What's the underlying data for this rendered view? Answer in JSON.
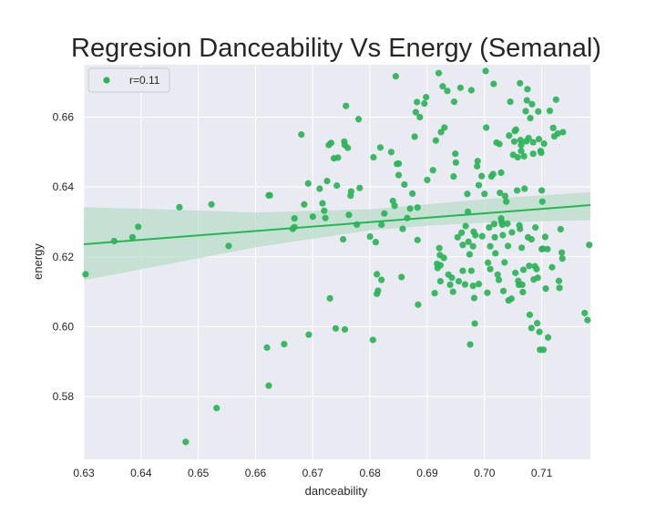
{
  "chart_data": {
    "type": "scatter",
    "title": "Regresion Danceability Vs Energy (Semanal)",
    "xlabel": "danceability",
    "ylabel": "energy",
    "xlim": [
      0.63,
      0.7185
    ],
    "ylim": [
      0.562,
      0.675
    ],
    "xticks": [
      0.63,
      0.64,
      0.65,
      0.66,
      0.67,
      0.68,
      0.69,
      0.7,
      0.71
    ],
    "xtick_labels": [
      "0.63",
      "0.64",
      "0.65",
      "0.66",
      "0.67",
      "0.68",
      "0.69",
      "0.70",
      "0.71"
    ],
    "yticks": [
      0.58,
      0.6,
      0.62,
      0.64,
      0.66
    ],
    "ytick_labels": [
      "0.58",
      "0.60",
      "0.62",
      "0.64",
      "0.66"
    ],
    "grid": true,
    "legend": {
      "position": "upper-left",
      "entries": [
        {
          "label": "r=0.11"
        }
      ]
    },
    "colors": {
      "points": "#2bb358",
      "line": "#21b852",
      "band": "#b9dcc8",
      "background": "#eaeaf2",
      "grid": "#ffffff"
    },
    "regression": {
      "x0": 0.63,
      "y0": 0.6236,
      "x1": 0.7185,
      "y1": 0.6348
    },
    "confidence_band": {
      "x": [
        0.63,
        0.64,
        0.66,
        0.68,
        0.69,
        0.7,
        0.7185
      ],
      "lower": [
        0.6133,
        0.6164,
        0.6227,
        0.6276,
        0.6289,
        0.6298,
        0.6305
      ],
      "upper": [
        0.6342,
        0.6338,
        0.6327,
        0.6336,
        0.635,
        0.6365,
        0.6385
      ]
    },
    "points": [
      [
        0.6303,
        0.615
      ],
      [
        0.6353,
        0.6245
      ],
      [
        0.6385,
        0.6256
      ],
      [
        0.6395,
        0.6286
      ],
      [
        0.6467,
        0.6342
      ],
      [
        0.6478,
        0.567
      ],
      [
        0.6523,
        0.635
      ],
      [
        0.6532,
        0.5767
      ],
      [
        0.6553,
        0.6231
      ],
      [
        0.662,
        0.594
      ],
      [
        0.6623,
        0.6376
      ],
      [
        0.6625,
        0.6376
      ],
      [
        0.6623,
        0.5831
      ],
      [
        0.665,
        0.595
      ],
      [
        0.6665,
        0.628
      ],
      [
        0.6668,
        0.6285
      ],
      [
        0.6668,
        0.631
      ],
      [
        0.668,
        0.655
      ],
      [
        0.6685,
        0.635
      ],
      [
        0.6692,
        0.641
      ],
      [
        0.6693,
        0.5977
      ],
      [
        0.67,
        0.6315
      ],
      [
        0.6712,
        0.6395
      ],
      [
        0.6717,
        0.6353
      ],
      [
        0.672,
        0.6332
      ],
      [
        0.6722,
        0.6311
      ],
      [
        0.6725,
        0.6417
      ],
      [
        0.6728,
        0.652
      ],
      [
        0.673,
        0.6081
      ],
      [
        0.6732,
        0.6526
      ],
      [
        0.6737,
        0.6482
      ],
      [
        0.674,
        0.5995
      ],
      [
        0.6742,
        0.6404
      ],
      [
        0.6744,
        0.6484
      ],
      [
        0.6753,
        0.625
      ],
      [
        0.6755,
        0.653
      ],
      [
        0.6756,
        0.652
      ],
      [
        0.6756,
        0.5992
      ],
      [
        0.6758,
        0.6632
      ],
      [
        0.6761,
        0.6512
      ],
      [
        0.6763,
        0.632
      ],
      [
        0.6766,
        0.6375
      ],
      [
        0.6767,
        0.6387
      ],
      [
        0.6777,
        0.6292
      ],
      [
        0.678,
        0.6594
      ],
      [
        0.6782,
        0.6397
      ],
      [
        0.68,
        0.6258
      ],
      [
        0.6805,
        0.5962
      ],
      [
        0.6806,
        0.6485
      ],
      [
        0.681,
        0.6242
      ],
      [
        0.6812,
        0.615
      ],
      [
        0.6812,
        0.6094
      ],
      [
        0.6814,
        0.6103
      ],
      [
        0.6818,
        0.6513
      ],
      [
        0.682,
        0.6292
      ],
      [
        0.682,
        0.6134
      ],
      [
        0.6825,
        0.6324
      ],
      [
        0.6837,
        0.65
      ],
      [
        0.684,
        0.636
      ],
      [
        0.6843,
        0.6346
      ],
      [
        0.6845,
        0.6717
      ],
      [
        0.6847,
        0.6466
      ],
      [
        0.685,
        0.6467
      ],
      [
        0.685,
        0.6434
      ],
      [
        0.6855,
        0.6142
      ],
      [
        0.6857,
        0.628
      ],
      [
        0.686,
        0.6407
      ],
      [
        0.6865,
        0.6311
      ],
      [
        0.687,
        0.6338
      ],
      [
        0.6874,
        0.6381
      ],
      [
        0.6878,
        0.6544
      ],
      [
        0.688,
        0.6614
      ],
      [
        0.6882,
        0.6643
      ],
      [
        0.6883,
        0.6341
      ],
      [
        0.6883,
        0.6248
      ],
      [
        0.6884,
        0.6063
      ],
      [
        0.6887,
        0.66
      ],
      [
        0.6895,
        0.6639
      ],
      [
        0.6898,
        0.6657
      ],
      [
        0.69,
        0.642
      ],
      [
        0.691,
        0.6448
      ],
      [
        0.6913,
        0.6096
      ],
      [
        0.6915,
        0.6533
      ],
      [
        0.6917,
        0.618
      ],
      [
        0.6918,
        0.6168
      ],
      [
        0.692,
        0.6726
      ],
      [
        0.6921,
        0.6225
      ],
      [
        0.6922,
        0.6205
      ],
      [
        0.6923,
        0.6176
      ],
      [
        0.6923,
        0.613
      ],
      [
        0.6924,
        0.6557
      ],
      [
        0.6927,
        0.6688
      ],
      [
        0.6929,
        0.6197
      ],
      [
        0.693,
        0.657
      ],
      [
        0.6935,
        0.6675
      ],
      [
        0.6937,
        0.6149
      ],
      [
        0.694,
        0.612
      ],
      [
        0.6943,
        0.614
      ],
      [
        0.6945,
        0.61
      ],
      [
        0.6946,
        0.643
      ],
      [
        0.6947,
        0.6644
      ],
      [
        0.6949,
        0.6495
      ],
      [
        0.695,
        0.647
      ],
      [
        0.6953,
        0.6256
      ],
      [
        0.6955,
        0.613
      ],
      [
        0.6958,
        0.6684
      ],
      [
        0.696,
        0.6269
      ],
      [
        0.6962,
        0.6234
      ],
      [
        0.6962,
        0.616
      ],
      [
        0.6966,
        0.6121
      ],
      [
        0.6967,
        0.6288
      ],
      [
        0.697,
        0.638
      ],
      [
        0.6971,
        0.6329
      ],
      [
        0.6972,
        0.6243
      ],
      [
        0.6974,
        0.6207
      ],
      [
        0.6975,
        0.5949
      ],
      [
        0.6977,
        0.6677
      ],
      [
        0.6977,
        0.616
      ],
      [
        0.698,
        0.623
      ],
      [
        0.698,
        0.6117
      ],
      [
        0.6981,
        0.6272
      ],
      [
        0.6982,
        0.6082
      ],
      [
        0.6983,
        0.6009
      ],
      [
        0.6984,
        0.6262
      ],
      [
        0.6987,
        0.6459
      ],
      [
        0.6988,
        0.6474
      ],
      [
        0.699,
        0.6122
      ],
      [
        0.699,
        0.6405
      ],
      [
        0.6995,
        0.6431
      ],
      [
        0.6996,
        0.6259
      ],
      [
        0.7,
        0.638
      ],
      [
        0.7002,
        0.6732
      ],
      [
        0.7003,
        0.657
      ],
      [
        0.7005,
        0.6097
      ],
      [
        0.7006,
        0.6183
      ],
      [
        0.7008,
        0.6284
      ],
      [
        0.701,
        0.623
      ],
      [
        0.701,
        0.6165
      ],
      [
        0.7012,
        0.643
      ],
      [
        0.7015,
        0.6437
      ],
      [
        0.7016,
        0.6695
      ],
      [
        0.7017,
        0.6294
      ],
      [
        0.7018,
        0.6256
      ],
      [
        0.7019,
        0.621
      ],
      [
        0.7021,
        0.6527
      ],
      [
        0.7023,
        0.6149
      ],
      [
        0.7025,
        0.6134
      ],
      [
        0.7026,
        0.6523
      ],
      [
        0.7027,
        0.6383
      ],
      [
        0.7029,
        0.6441
      ],
      [
        0.7029,
        0.631
      ],
      [
        0.703,
        0.63
      ],
      [
        0.7031,
        0.6292
      ],
      [
        0.7032,
        0.6262
      ],
      [
        0.7033,
        0.6102
      ],
      [
        0.7035,
        0.6184
      ],
      [
        0.7036,
        0.6374
      ],
      [
        0.7038,
        0.6358
      ],
      [
        0.704,
        0.6295
      ],
      [
        0.7041,
        0.6231
      ],
      [
        0.7042,
        0.6075
      ],
      [
        0.7043,
        0.6547
      ],
      [
        0.7045,
        0.6644
      ],
      [
        0.7047,
        0.608
      ],
      [
        0.7048,
        0.627
      ],
      [
        0.705,
        0.6492
      ],
      [
        0.7052,
        0.653
      ],
      [
        0.7053,
        0.656
      ],
      [
        0.7054,
        0.6154
      ],
      [
        0.7055,
        0.6564
      ],
      [
        0.7057,
        0.639
      ],
      [
        0.7058,
        0.6485
      ],
      [
        0.7059,
        0.6131
      ],
      [
        0.706,
        0.612
      ],
      [
        0.7061,
        0.629
      ],
      [
        0.7062,
        0.6697
      ],
      [
        0.7062,
        0.628
      ],
      [
        0.7063,
        0.6534
      ],
      [
        0.7064,
        0.652
      ],
      [
        0.7064,
        0.6503
      ],
      [
        0.7065,
        0.6226
      ],
      [
        0.7066,
        0.612
      ],
      [
        0.7067,
        0.6099
      ],
      [
        0.7068,
        0.6163
      ],
      [
        0.7069,
        0.6488
      ],
      [
        0.707,
        0.6395
      ],
      [
        0.7072,
        0.6617
      ],
      [
        0.7073,
        0.6531
      ],
      [
        0.7074,
        0.6648
      ],
      [
        0.7075,
        0.668
      ],
      [
        0.7076,
        0.6256
      ],
      [
        0.7077,
        0.654
      ],
      [
        0.7078,
        0.6174
      ],
      [
        0.7079,
        0.6034
      ],
      [
        0.708,
        0.6597
      ],
      [
        0.7082,
        0.5996
      ],
      [
        0.7082,
        0.625
      ],
      [
        0.7083,
        0.6637
      ],
      [
        0.7085,
        0.6528
      ],
      [
        0.7085,
        0.6495
      ],
      [
        0.7086,
        0.6135
      ],
      [
        0.7088,
        0.6173
      ],
      [
        0.7089,
        0.6284
      ],
      [
        0.7091,
        0.6165
      ],
      [
        0.7092,
        0.601
      ],
      [
        0.7093,
        0.614
      ],
      [
        0.7094,
        0.6616
      ],
      [
        0.7095,
        0.6537
      ],
      [
        0.7096,
        0.5985
      ],
      [
        0.7097,
        0.5934
      ],
      [
        0.7098,
        0.6503
      ],
      [
        0.7099,
        0.6498
      ],
      [
        0.71,
        0.6222
      ],
      [
        0.71,
        0.639
      ],
      [
        0.7101,
        0.6358
      ],
      [
        0.7102,
        0.6223
      ],
      [
        0.7103,
        0.5934
      ],
      [
        0.7104,
        0.6524
      ],
      [
        0.7106,
        0.6257
      ],
      [
        0.7107,
        0.6109
      ],
      [
        0.711,
        0.6222
      ],
      [
        0.7111,
        0.5969
      ],
      [
        0.7114,
        0.6618
      ],
      [
        0.7118,
        0.617
      ],
      [
        0.712,
        0.6569
      ],
      [
        0.7122,
        0.6545
      ],
      [
        0.7125,
        0.665
      ],
      [
        0.7128,
        0.6553
      ],
      [
        0.713,
        0.6131
      ],
      [
        0.7131,
        0.6111
      ],
      [
        0.7133,
        0.6279
      ],
      [
        0.7135,
        0.6212
      ],
      [
        0.7136,
        0.6195
      ],
      [
        0.7137,
        0.6557
      ],
      [
        0.7175,
        0.6039
      ],
      [
        0.718,
        0.6019
      ],
      [
        0.7183,
        0.6234
      ]
    ]
  }
}
